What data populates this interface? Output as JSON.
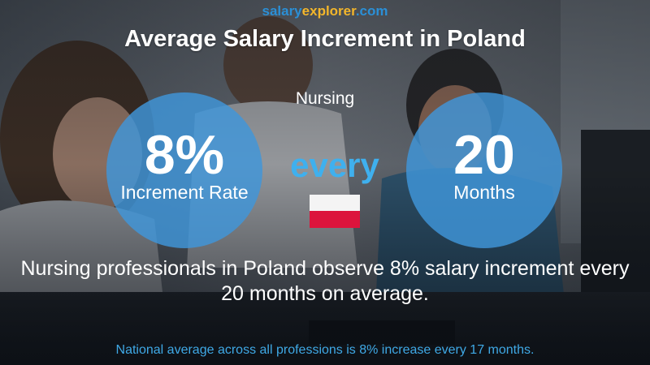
{
  "brand": {
    "part1": "salary",
    "part2": "explorer",
    "part3": ".com"
  },
  "title": "Average Salary Increment in Poland",
  "subtitle": "Nursing",
  "increment": {
    "value": "8%",
    "label": "Increment Rate"
  },
  "connector": "every",
  "period": {
    "value": "20",
    "label": "Months"
  },
  "flag": {
    "country": "Poland",
    "top_color": "#f4f4f4",
    "bottom_color": "#dc143c"
  },
  "description": "Nursing professionals in Poland observe 8% salary increment every 20 months on average.",
  "footer": "National average across all professions is 8% increase every 17 months.",
  "colors": {
    "accent_blue": "#3fb0ee",
    "circle_blue": "#3f96da",
    "brand_orange": "#f3b62b"
  }
}
